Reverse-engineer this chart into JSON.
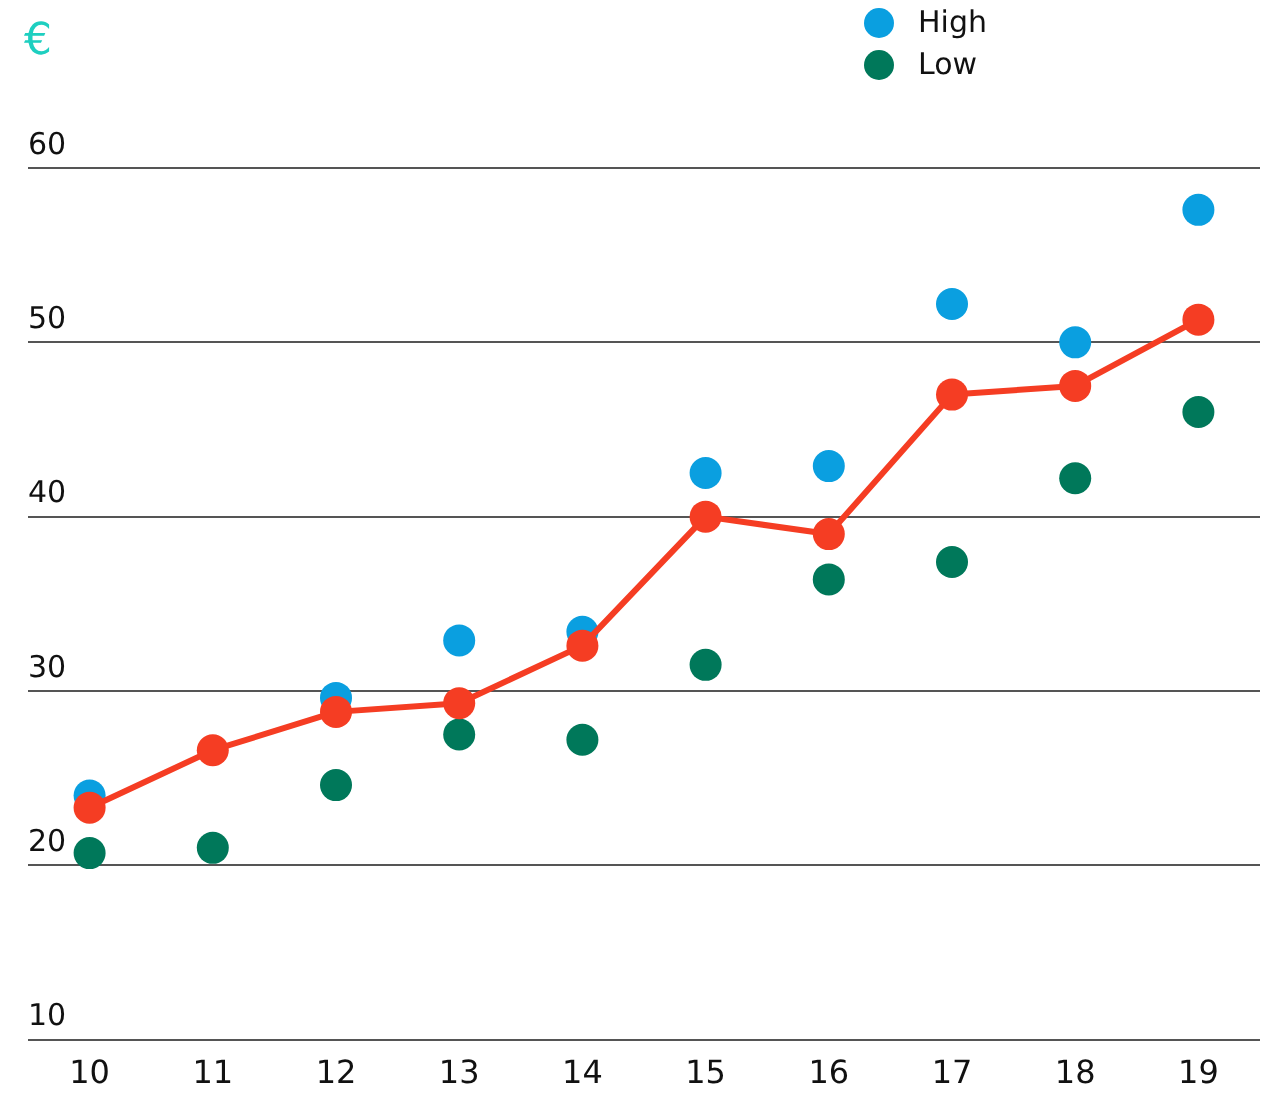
{
  "chart_data": {
    "type": "scatter",
    "ylabel": "€",
    "categories": [
      "10",
      "11",
      "12",
      "13",
      "14",
      "15",
      "16",
      "17",
      "18",
      "19"
    ],
    "series": [
      {
        "name": "High",
        "color": "#0a9fe0",
        "values": [
          24.0,
          null,
          29.6,
          32.9,
          33.4,
          42.5,
          42.9,
          52.2,
          50.0,
          57.6
        ]
      },
      {
        "name": "Low",
        "color": "#00785a",
        "values": [
          20.7,
          21.0,
          24.6,
          27.5,
          27.2,
          31.5,
          36.4,
          37.4,
          42.2,
          46.0
        ]
      },
      {
        "type": "line",
        "color": "#f53d23",
        "values": [
          23.3,
          26.6,
          28.8,
          29.3,
          32.6,
          40.0,
          39.0,
          47.0,
          47.5,
          51.3
        ]
      }
    ],
    "ylim": [
      10,
      60
    ],
    "yticks": [
      10,
      20,
      30,
      40,
      50,
      60
    ],
    "grid": "y",
    "legend": "top right",
    "marker": "circle",
    "line_style": "solid"
  }
}
